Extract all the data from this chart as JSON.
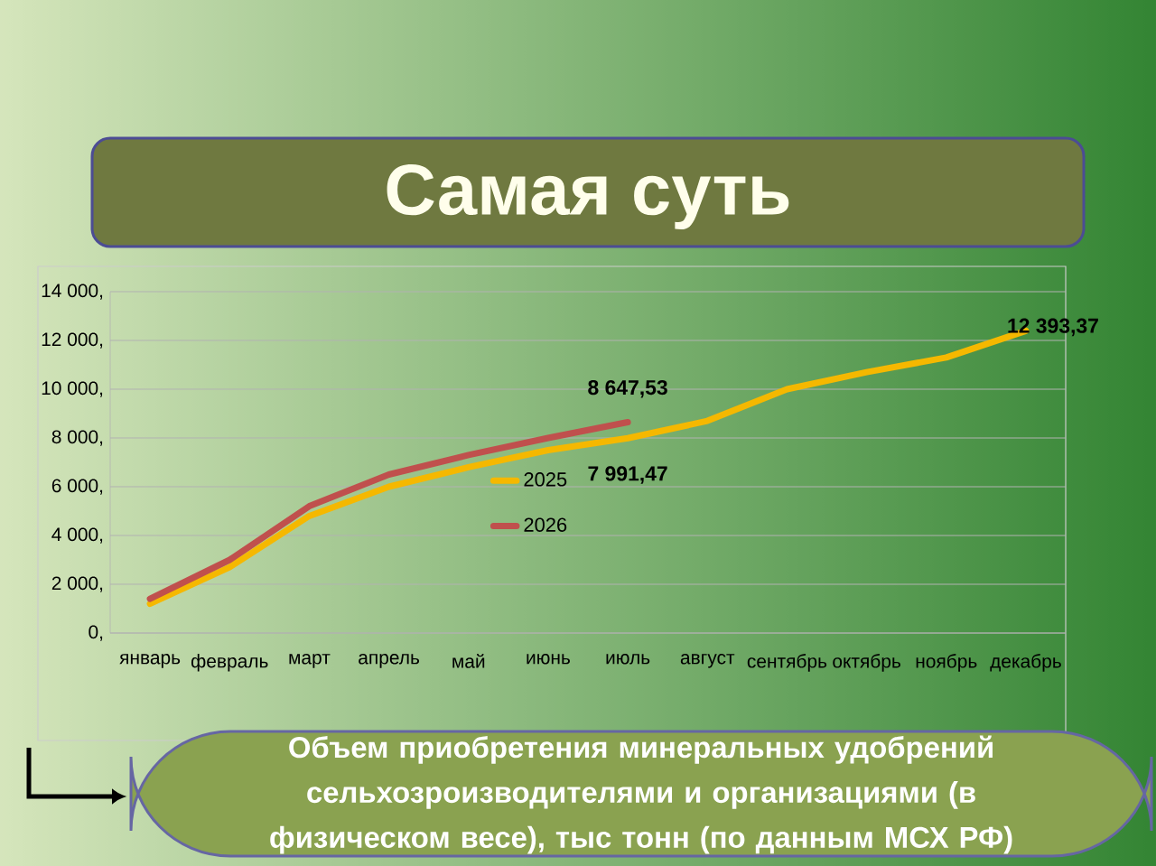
{
  "chart_data": {
    "type": "line",
    "title": "Самая суть",
    "annotations": [
      "Объем приобретения минеральных удобрений сельхозроизводителями и организациями  (в физическом весе), тыс тонн (по данным МСХ РФ)"
    ],
    "categories": [
      "январь",
      "февраль",
      "март",
      "апрель",
      "май",
      "июнь",
      "июль",
      "август",
      "сентябрь",
      "октябрь",
      "ноябрь",
      "декабрь"
    ],
    "series": [
      {
        "name": "2025",
        "color": "#f5b800",
        "values": [
          1200,
          2700,
          4800,
          6000,
          6800,
          7500,
          7991.47,
          8700,
          10000,
          10700,
          11300,
          12393.37
        ],
        "value_labels": [
          null,
          null,
          null,
          null,
          null,
          null,
          "7 991,47",
          null,
          null,
          null,
          null,
          "12 393,37"
        ]
      },
      {
        "name": "2026",
        "color": "#c0504d",
        "values": [
          1400,
          3000,
          5200,
          6500,
          7300,
          8000,
          8647.53,
          null,
          null,
          null,
          null,
          null
        ],
        "value_labels": [
          null,
          null,
          null,
          null,
          null,
          null,
          "8 647,53",
          null,
          null,
          null,
          null,
          null
        ]
      }
    ],
    "ylim": [
      0,
      14000
    ],
    "yticks": [
      {
        "value": 0,
        "label": "0,"
      },
      {
        "value": 2000,
        "label": "2 000,"
      },
      {
        "value": 4000,
        "label": "4 000,"
      },
      {
        "value": 6000,
        "label": "6 000,"
      },
      {
        "value": 8000,
        "label": "8 000,"
      },
      {
        "value": 10000,
        "label": "10 000,"
      },
      {
        "value": 12000,
        "label": "12 000,"
      },
      {
        "value": 14000,
        "label": "14 000,"
      }
    ],
    "grid": "y",
    "legend": "center",
    "marker": "none",
    "line_style": "solid"
  }
}
